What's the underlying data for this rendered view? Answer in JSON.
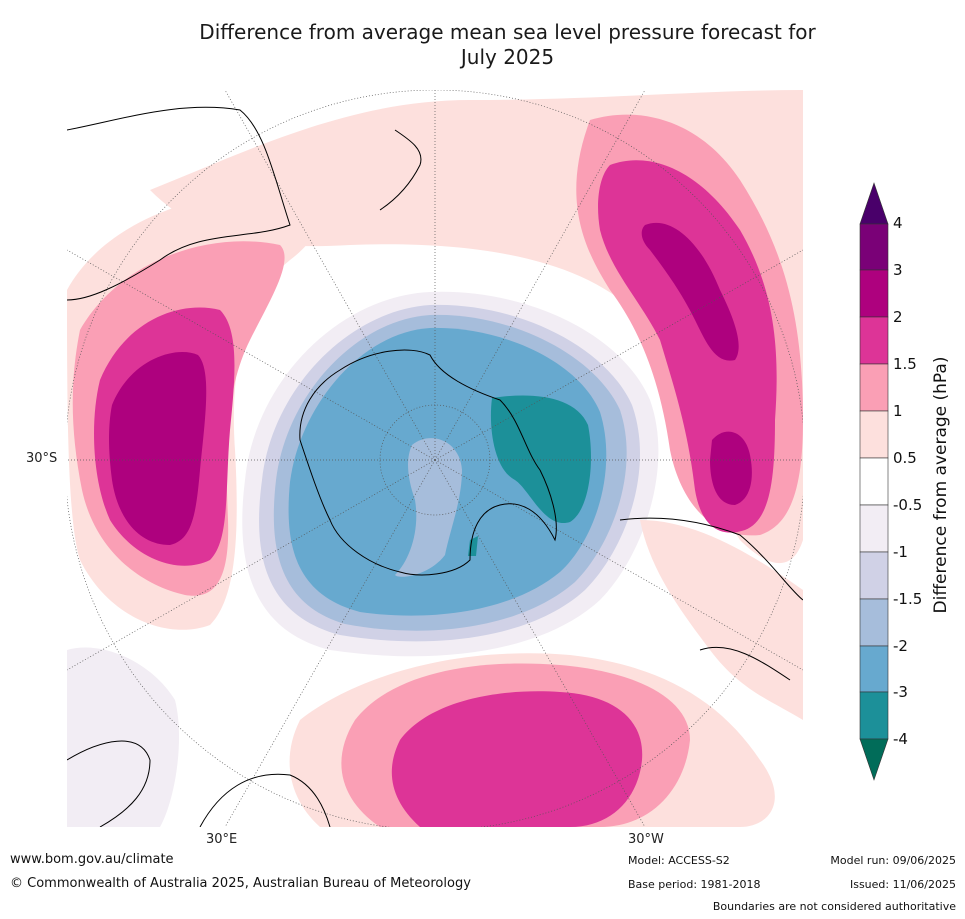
{
  "title_line1": "Difference from average mean sea level pressure forecast for",
  "title_line2": "July 2025",
  "map": {
    "projection": "south-polar-stereographic",
    "lat_label": "30°S",
    "lon_labels": [
      "30°E",
      "30°W"
    ],
    "colors": {
      "ocean": "#ffffff",
      "neg_0_5_1": "#f2edf4",
      "neg_1_1_5": "#d0d1e6",
      "neg_1_5_2": "#a6bddb",
      "neg_2_3": "#67a9cf",
      "neg_3_4": "#1c9099",
      "pos_0_5_1": "#fde0dd",
      "pos_1_1_5": "#fa9fb5",
      "pos_1_5_2": "#dd3497",
      "pos_2_3": "#ae017e",
      "pos_3_4": "#7a0177",
      "above_4": "#49006a",
      "below_minus_4": "#016c59",
      "coastline": "#000000",
      "gridline": "#555555"
    }
  },
  "colorbar": {
    "label": "Difference from average (hPa)",
    "ticks": [
      "4",
      "3",
      "2",
      "1.5",
      "1",
      "0.5",
      "-0.5",
      "-1",
      "-1.5",
      "-2",
      "-3",
      "-4"
    ]
  },
  "footer": {
    "website": "www.bom.gov.au/climate",
    "copyright": "© Commonwealth of Australia 2025, Australian Bureau of Meteorology",
    "model": "Model: ACCESS-S2",
    "base_period": "Base period: 1981-2018",
    "model_run": "Model run: 09/06/2025",
    "issued": "Issued: 11/06/2025",
    "disclaimer": "Boundaries are not considered authoritative"
  }
}
